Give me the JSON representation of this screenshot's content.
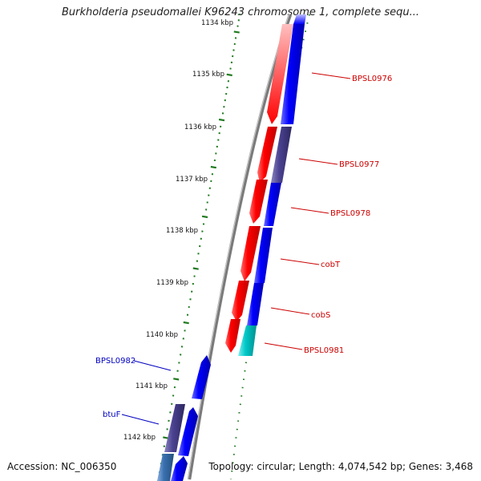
{
  "header": {
    "title": "Burkholderia pseudomallei K96243 chromosome 1, complete sequ..."
  },
  "footer": {
    "accession": "Accession: NC_006350",
    "summary": "Topology: circular; Length: 4,074,542 bp; Genes: 3,468"
  },
  "map": {
    "colors": {
      "backbone": "#808080",
      "tick": "#1f7a1f",
      "forward_gene": "#0000ff",
      "reverse_gene": "#ff0000",
      "purple_gene": "#4b4291",
      "cyan_gene": "#00c8c8",
      "steel_gene": "#3a70b0",
      "label_forward": "#0000c0",
      "label_reverse": "#cc0000"
    },
    "tick_labels": [
      "1134 kbp",
      "1135 kbp",
      "1136 kbp",
      "1137 kbp",
      "1138 kbp",
      "1139 kbp",
      "1140 kbp",
      "1141 kbp",
      "1142 kbp"
    ],
    "gene_labels": [
      {
        "id": "bpsl0976",
        "text": "BPSL0976",
        "strand": "reverse"
      },
      {
        "id": "bpsl0977",
        "text": "BPSL0977",
        "strand": "reverse"
      },
      {
        "id": "bpsl0978",
        "text": "BPSL0978",
        "strand": "reverse"
      },
      {
        "id": "cobt",
        "text": "cobT",
        "strand": "reverse"
      },
      {
        "id": "cobs",
        "text": "cobS",
        "strand": "reverse"
      },
      {
        "id": "bpsl0981",
        "text": "BPSL0981",
        "strand": "reverse"
      },
      {
        "id": "bpsl0982",
        "text": "BPSL0982",
        "strand": "forward"
      },
      {
        "id": "btuf",
        "text": "btuF",
        "strand": "forward"
      }
    ]
  }
}
